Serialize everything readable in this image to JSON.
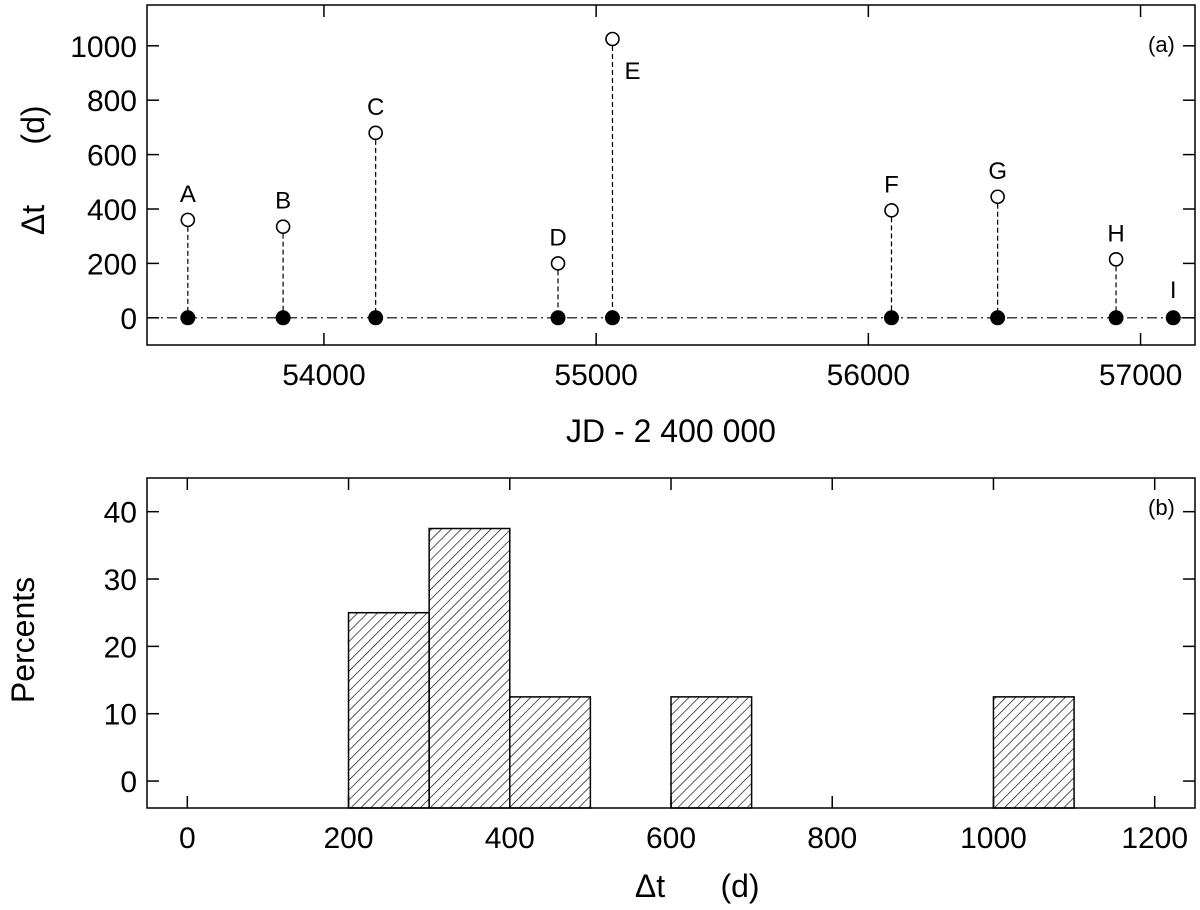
{
  "chart_data": [
    {
      "type": "scatter",
      "panel_label": "(a)",
      "xlabel": "JD - 2 400 000",
      "ylabel_symbol": "Δt",
      "ylabel_unit": "(d)",
      "xlim": [
        53350,
        57200
      ],
      "ylim": [
        -100,
        1150
      ],
      "xticks": [
        54000,
        55000,
        56000,
        57000
      ],
      "yticks": [
        0,
        200,
        400,
        600,
        800,
        1000
      ],
      "baseline_y": 0,
      "points": [
        {
          "label": "A",
          "jd": 53500,
          "dt": 360
        },
        {
          "label": "B",
          "jd": 53850,
          "dt": 335
        },
        {
          "label": "C",
          "jd": 54190,
          "dt": 680
        },
        {
          "label": "D",
          "jd": 54860,
          "dt": 200
        },
        {
          "label": "E",
          "jd": 55060,
          "dt": 1025
        },
        {
          "label": "F",
          "jd": 56085,
          "dt": 395
        },
        {
          "label": "G",
          "jd": 56475,
          "dt": 445
        },
        {
          "label": "H",
          "jd": 56910,
          "dt": 215
        },
        {
          "label": "I",
          "jd": 57120,
          "dt": 0
        }
      ]
    },
    {
      "type": "bar",
      "panel_label": "(b)",
      "xlabel_symbol": "Δt",
      "xlabel_unit": "(d)",
      "ylabel": "Percents",
      "xlim": [
        -50,
        1250
      ],
      "ylim": [
        -4,
        45
      ],
      "xticks": [
        0,
        200,
        400,
        600,
        800,
        1000,
        1200
      ],
      "yticks": [
        0,
        10,
        20,
        30,
        40
      ],
      "bins": [
        {
          "from": 200,
          "to": 300,
          "percent": 25
        },
        {
          "from": 300,
          "to": 400,
          "percent": 37.5
        },
        {
          "from": 400,
          "to": 500,
          "percent": 12.5
        },
        {
          "from": 600,
          "to": 700,
          "percent": 12.5
        },
        {
          "from": 1000,
          "to": 1100,
          "percent": 12.5
        }
      ]
    }
  ]
}
